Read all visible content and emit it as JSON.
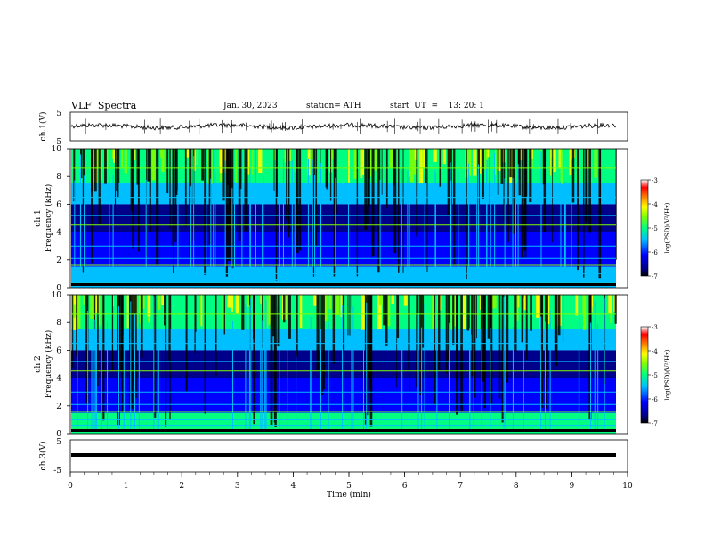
{
  "header": {
    "title": "VLF  Spectra",
    "date": "Jan. 30, 2023",
    "station": "station= ATH",
    "start": "start  UT  =    13: 20: 1"
  },
  "chart_data": [
    {
      "type": "line",
      "id": "ch1-waveform",
      "ylabel": "ch.1(V)",
      "ylim": [
        -5,
        5
      ],
      "yticks": [
        "5",
        "-5"
      ],
      "xlim": [
        0,
        10
      ]
    },
    {
      "type": "heatmap",
      "id": "ch1-spectrogram",
      "ylabel_line1": "ch.1",
      "ylabel_line2": "Frequency  (kHz)",
      "ylim": [
        0,
        10
      ],
      "yticks": [
        "0",
        "2",
        "4",
        "6",
        "8",
        "10"
      ],
      "xlim": [
        0,
        10
      ],
      "colorbar": {
        "label": "log(PSD)(V²/Hz)",
        "range": [
          -7,
          -3
        ],
        "ticks": [
          "-3",
          "-4",
          "-5",
          "-6",
          "-7"
        ]
      }
    },
    {
      "type": "heatmap",
      "id": "ch2-spectrogram",
      "ylabel_line1": "ch.2",
      "ylabel_line2": "Frequency  (kHz)",
      "ylim": [
        0,
        10
      ],
      "yticks": [
        "0",
        "2",
        "4",
        "6",
        "8",
        "10"
      ],
      "xlim": [
        0,
        10
      ],
      "colorbar": {
        "label": "log(PSD)(V²/Hz)",
        "range": [
          -7,
          -3
        ],
        "ticks": [
          "-3",
          "-4",
          "-5",
          "-6",
          "-7"
        ]
      }
    },
    {
      "type": "line",
      "id": "ch3-waveform",
      "ylabel": "ch.3(V)",
      "ylim": [
        -5,
        5
      ],
      "yticks": [
        "5",
        "-5"
      ],
      "xlim": [
        0,
        10
      ],
      "xlabel": "Time  (min)",
      "xticks": [
        "0",
        "1",
        "2",
        "3",
        "4",
        "5",
        "6",
        "7",
        "8",
        "9",
        "10"
      ]
    }
  ],
  "colors": {
    "psd_scale": [
      "#000000",
      "#00008b",
      "#0000ff",
      "#00bfff",
      "#00ff80",
      "#80ff00",
      "#ffff00",
      "#ff8000",
      "#ff0000",
      "#ffffff"
    ]
  }
}
